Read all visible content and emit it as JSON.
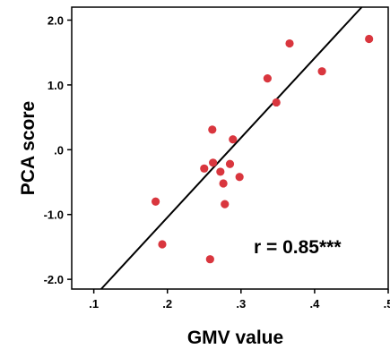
{
  "chart_data": {
    "type": "scatter",
    "title": "",
    "xlabel": "GMV value",
    "ylabel": "PCA score",
    "xlim": [
      0.07,
      0.5
    ],
    "ylim": [
      -2.15,
      2.2
    ],
    "xticks": [
      0.1,
      0.2,
      0.3,
      0.4,
      0.5
    ],
    "xtick_labels": [
      ".1",
      ".2",
      ".3",
      ".4",
      ".5"
    ],
    "yticks": [
      -2.0,
      -1.0,
      0.0,
      1.0,
      2.0
    ],
    "ytick_labels": [
      "-2.0",
      "-1.0",
      ".0",
      "1.0",
      "2.0"
    ],
    "grid": false,
    "point_color": "#d9363e",
    "line_color": "#000000",
    "points": [
      {
        "x": 0.184,
        "y": -0.8
      },
      {
        "x": 0.193,
        "y": -1.46
      },
      {
        "x": 0.25,
        "y": -0.29
      },
      {
        "x": 0.258,
        "y": -1.69
      },
      {
        "x": 0.261,
        "y": 0.31
      },
      {
        "x": 0.262,
        "y": -0.2
      },
      {
        "x": 0.272,
        "y": -0.34
      },
      {
        "x": 0.276,
        "y": -0.52
      },
      {
        "x": 0.278,
        "y": -0.84
      },
      {
        "x": 0.285,
        "y": -0.22
      },
      {
        "x": 0.289,
        "y": 0.16
      },
      {
        "x": 0.298,
        "y": -0.42
      },
      {
        "x": 0.336,
        "y": 1.1
      },
      {
        "x": 0.348,
        "y": 0.73
      },
      {
        "x": 0.366,
        "y": 1.64
      },
      {
        "x": 0.41,
        "y": 1.21
      },
      {
        "x": 0.474,
        "y": 1.71
      }
    ],
    "fit_line": {
      "x": [
        0.11,
        0.464
      ],
      "y": [
        -2.15,
        2.2
      ]
    },
    "annotation": "r = 0.85***"
  }
}
